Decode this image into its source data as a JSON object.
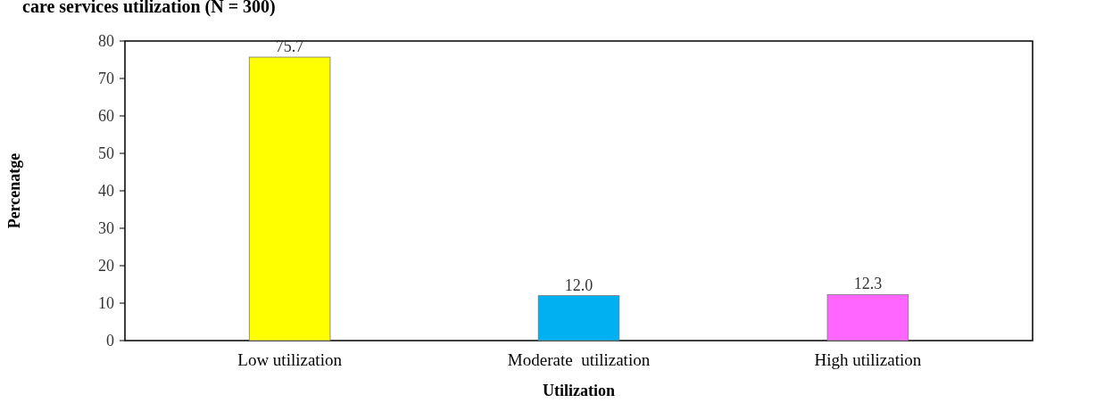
{
  "chart_data": {
    "type": "bar",
    "title": "care services utilization (N = 300)",
    "xlabel": "Utilization",
    "ylabel": "Percenatge",
    "categories": [
      "Low utilization",
      "Moderate  utilization",
      "High utilization"
    ],
    "values": [
      75.7,
      12.0,
      12.3
    ],
    "colors": [
      "#ffff00",
      "#00b0f0",
      "#ff66ff"
    ],
    "value_labels": [
      "75.7",
      "12.0",
      "12.3"
    ],
    "ylim": [
      0,
      80
    ],
    "yticks": [
      0,
      10,
      20,
      30,
      40,
      50,
      60,
      70,
      80
    ],
    "grid": false
  }
}
